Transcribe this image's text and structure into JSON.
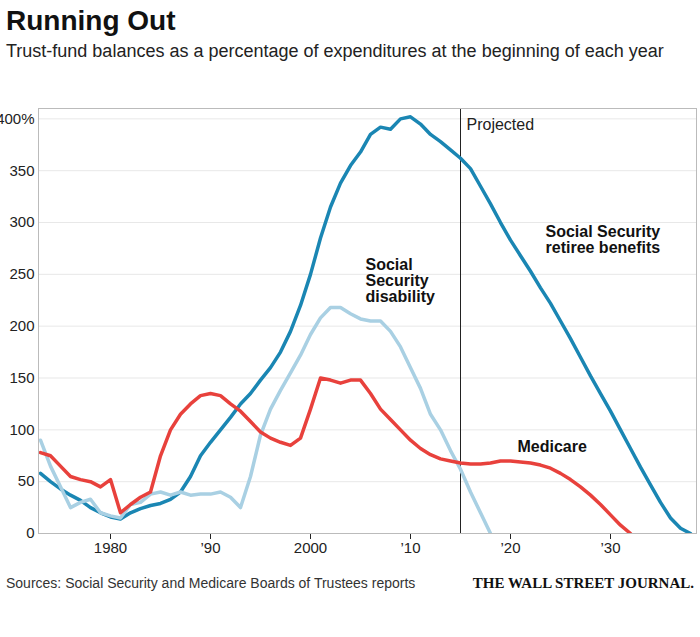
{
  "chart_data": {
    "type": "line",
    "title": "Running Out",
    "subtitle": "Trust-fund balances as a percentage of expenditures at the beginning of each year",
    "source": "Sources: Social Security and Medicare Boards of Trustees reports",
    "credit": "THE WALL STREET JOURNAL.",
    "x": [
      1973,
      1974,
      1975,
      1976,
      1977,
      1978,
      1979,
      1980,
      1981,
      1982,
      1983,
      1984,
      1985,
      1986,
      1987,
      1988,
      1989,
      1990,
      1991,
      1992,
      1993,
      1994,
      1995,
      1996,
      1997,
      1998,
      1999,
      2000,
      2001,
      2002,
      2003,
      2004,
      2005,
      2006,
      2007,
      2008,
      2009,
      2010,
      2011,
      2012,
      2013,
      2014,
      2015,
      2016,
      2017,
      2018,
      2019,
      2020,
      2021,
      2022,
      2023,
      2024,
      2025,
      2026,
      2027,
      2028,
      2029,
      2030,
      2031,
      2032,
      2033,
      2034,
      2035,
      2036,
      2037,
      2038
    ],
    "series": [
      {
        "name": "Social Security retiree benefits",
        "color": "#1a86b3",
        "values": [
          58,
          50,
          43,
          37,
          32,
          25,
          20,
          16,
          14,
          20,
          24,
          27,
          29,
          33,
          40,
          55,
          75,
          88,
          100,
          112,
          125,
          135,
          148,
          160,
          175,
          195,
          220,
          250,
          285,
          315,
          338,
          355,
          368,
          385,
          392,
          390,
          400,
          402,
          395,
          385,
          378,
          370,
          362,
          352,
          335,
          318,
          300,
          283,
          268,
          253,
          237,
          222,
          205,
          188,
          170,
          152,
          135,
          118,
          100,
          82,
          64,
          47,
          30,
          15,
          5,
          0
        ]
      },
      {
        "name": "Social Security disability",
        "color": "#a9d0e3",
        "values": [
          90,
          65,
          45,
          25,
          30,
          33,
          20,
          17,
          15,
          28,
          30,
          38,
          40,
          37,
          40,
          37,
          38,
          38,
          40,
          35,
          25,
          55,
          95,
          120,
          138,
          155,
          172,
          192,
          208,
          218,
          218,
          212,
          207,
          205,
          205,
          195,
          180,
          160,
          140,
          115,
          100,
          80,
          62,
          40,
          20,
          0,
          null,
          null,
          null,
          null,
          null,
          null,
          null,
          null,
          null,
          null,
          null,
          null,
          null,
          null,
          null,
          null,
          null,
          null,
          null,
          null
        ]
      },
      {
        "name": "Medicare",
        "color": "#e8413c",
        "values": [
          78,
          75,
          65,
          55,
          52,
          50,
          45,
          52,
          20,
          28,
          35,
          40,
          75,
          100,
          115,
          125,
          133,
          135,
          133,
          125,
          118,
          108,
          98,
          92,
          88,
          85,
          92,
          120,
          150,
          148,
          145,
          148,
          148,
          135,
          120,
          110,
          100,
          90,
          82,
          76,
          72,
          70,
          68,
          67,
          67,
          68,
          70,
          70,
          69,
          68,
          66,
          63,
          58,
          52,
          45,
          37,
          28,
          18,
          8,
          0,
          null,
          null,
          null,
          null,
          null,
          null
        ]
      }
    ],
    "xlim": [
      1972.8,
      2038.6
    ],
    "xticks": [
      1980,
      {
        "value": 1990,
        "label": "’90"
      },
      2000,
      {
        "value": 2010,
        "label": "’10"
      },
      {
        "value": 2020,
        "label": "’20"
      },
      {
        "value": 2030,
        "label": "’30"
      }
    ],
    "ylim": [
      0,
      410
    ],
    "yticks": [
      0,
      50,
      100,
      150,
      200,
      250,
      300,
      350,
      {
        "value": 400,
        "label": "400%"
      }
    ],
    "grid": true,
    "annotations": [
      {
        "text": "Projected",
        "x": 2015
      }
    ]
  }
}
